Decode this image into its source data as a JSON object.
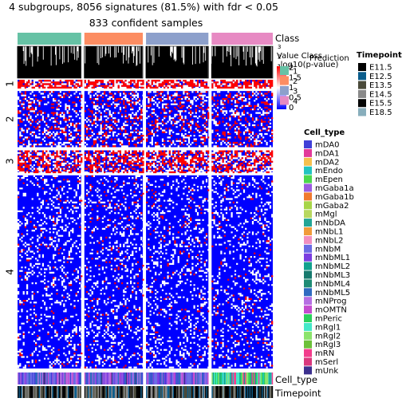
{
  "header": {
    "title": "4 subgroups, 8056 signatures (81.5%) with fdr < 0.05",
    "subtitle": "833 confident samples"
  },
  "chart_data": {
    "type": "heatmap",
    "groups": [
      {
        "name": "1",
        "color": "#66C2A5",
        "share": 0.259
      },
      {
        "name": "2",
        "color": "#FC8D62",
        "share": 0.238
      },
      {
        "name": "3",
        "color": "#8DA0CB",
        "share": 0.254
      },
      {
        "name": "4",
        "color": "#E78AC3",
        "share": 0.249
      }
    ],
    "row_groups": [
      {
        "label": "1",
        "share": 0.029
      },
      {
        "label": "2",
        "share": 0.201
      },
      {
        "label": "3",
        "share": 0.078
      },
      {
        "label": "4",
        "share": 0.692
      }
    ],
    "row_group_high_fraction": [
      0.97,
      0.28,
      0.72,
      0.05
    ],
    "heatmap_colors": {
      "low": "#0000FF",
      "mid": "#FFFFFF",
      "high": "#FF0000"
    },
    "top_annotation_labels": [
      "Class",
      "Value Class",
      "-log10(p-value)",
      "Prediction"
    ],
    "scale_ticks_top": [
      "3",
      "2",
      "1",
      "0"
    ],
    "value_scale": {
      "ticks": [
        "2",
        "1.5",
        "1",
        "0.5",
        "0"
      ],
      "title": "Value"
    },
    "class_legend": {
      "title": "Class",
      "items": [
        "1",
        "2",
        "3",
        "4"
      ]
    },
    "bottom_annotation_labels": [
      "Cell_type",
      "Timepoint"
    ],
    "timepoint_legend": {
      "title": "Timepoint",
      "items": [
        {
          "label": "E11.5",
          "color": "#000000"
        },
        {
          "label": "E12.5",
          "color": "#0B5D8C"
        },
        {
          "label": "E13.5",
          "color": "#4A4A3A"
        },
        {
          "label": "E14.5",
          "color": "#8A8A8A"
        },
        {
          "label": "E15.5",
          "color": "#050505"
        },
        {
          "label": "E18.5",
          "color": "#88AEBC"
        }
      ]
    },
    "cell_type_legend": {
      "title": "Cell_type",
      "items": [
        {
          "label": "mDA0",
          "color": "#4040D8"
        },
        {
          "label": "mDA1",
          "color": "#E23A9A"
        },
        {
          "label": "mDA2",
          "color": "#F5C04E"
        },
        {
          "label": "mEndo",
          "color": "#22C4C0"
        },
        {
          "label": "mEpen",
          "color": "#4CD84C"
        },
        {
          "label": "mGaba1a",
          "color": "#9B5BE0"
        },
        {
          "label": "mGaba1b",
          "color": "#F07A2E"
        },
        {
          "label": "mGaba2",
          "color": "#A7D548"
        },
        {
          "label": "mMgl",
          "color": "#B8D860"
        },
        {
          "label": "mNbDA",
          "color": "#23A596"
        },
        {
          "label": "mNbL1",
          "color": "#F19B3A"
        },
        {
          "label": "mNbL2",
          "color": "#F18EC0"
        },
        {
          "label": "mNbM",
          "color": "#6A6AE4"
        },
        {
          "label": "mNbML1",
          "color": "#7A3DE0"
        },
        {
          "label": "mNbML2",
          "color": "#12A18E"
        },
        {
          "label": "mNbML3",
          "color": "#177A6E"
        },
        {
          "label": "mNbML4",
          "color": "#1F8C74"
        },
        {
          "label": "mNbML5",
          "color": "#2F6AC0"
        },
        {
          "label": "mNProg",
          "color": "#B66FE3"
        },
        {
          "label": "mOMTN",
          "color": "#C44BCF"
        },
        {
          "label": "mPeric",
          "color": "#2AD15C"
        },
        {
          "label": "mRgl1",
          "color": "#44E8C8"
        },
        {
          "label": "mRgl2",
          "color": "#8BE36B"
        },
        {
          "label": "mRgl3",
          "color": "#6CC03A"
        },
        {
          "label": "mRN",
          "color": "#F23C8C"
        },
        {
          "label": "mSerl",
          "color": "#D9387D"
        },
        {
          "label": "mUnk",
          "color": "#3B2F8E"
        }
      ]
    }
  }
}
